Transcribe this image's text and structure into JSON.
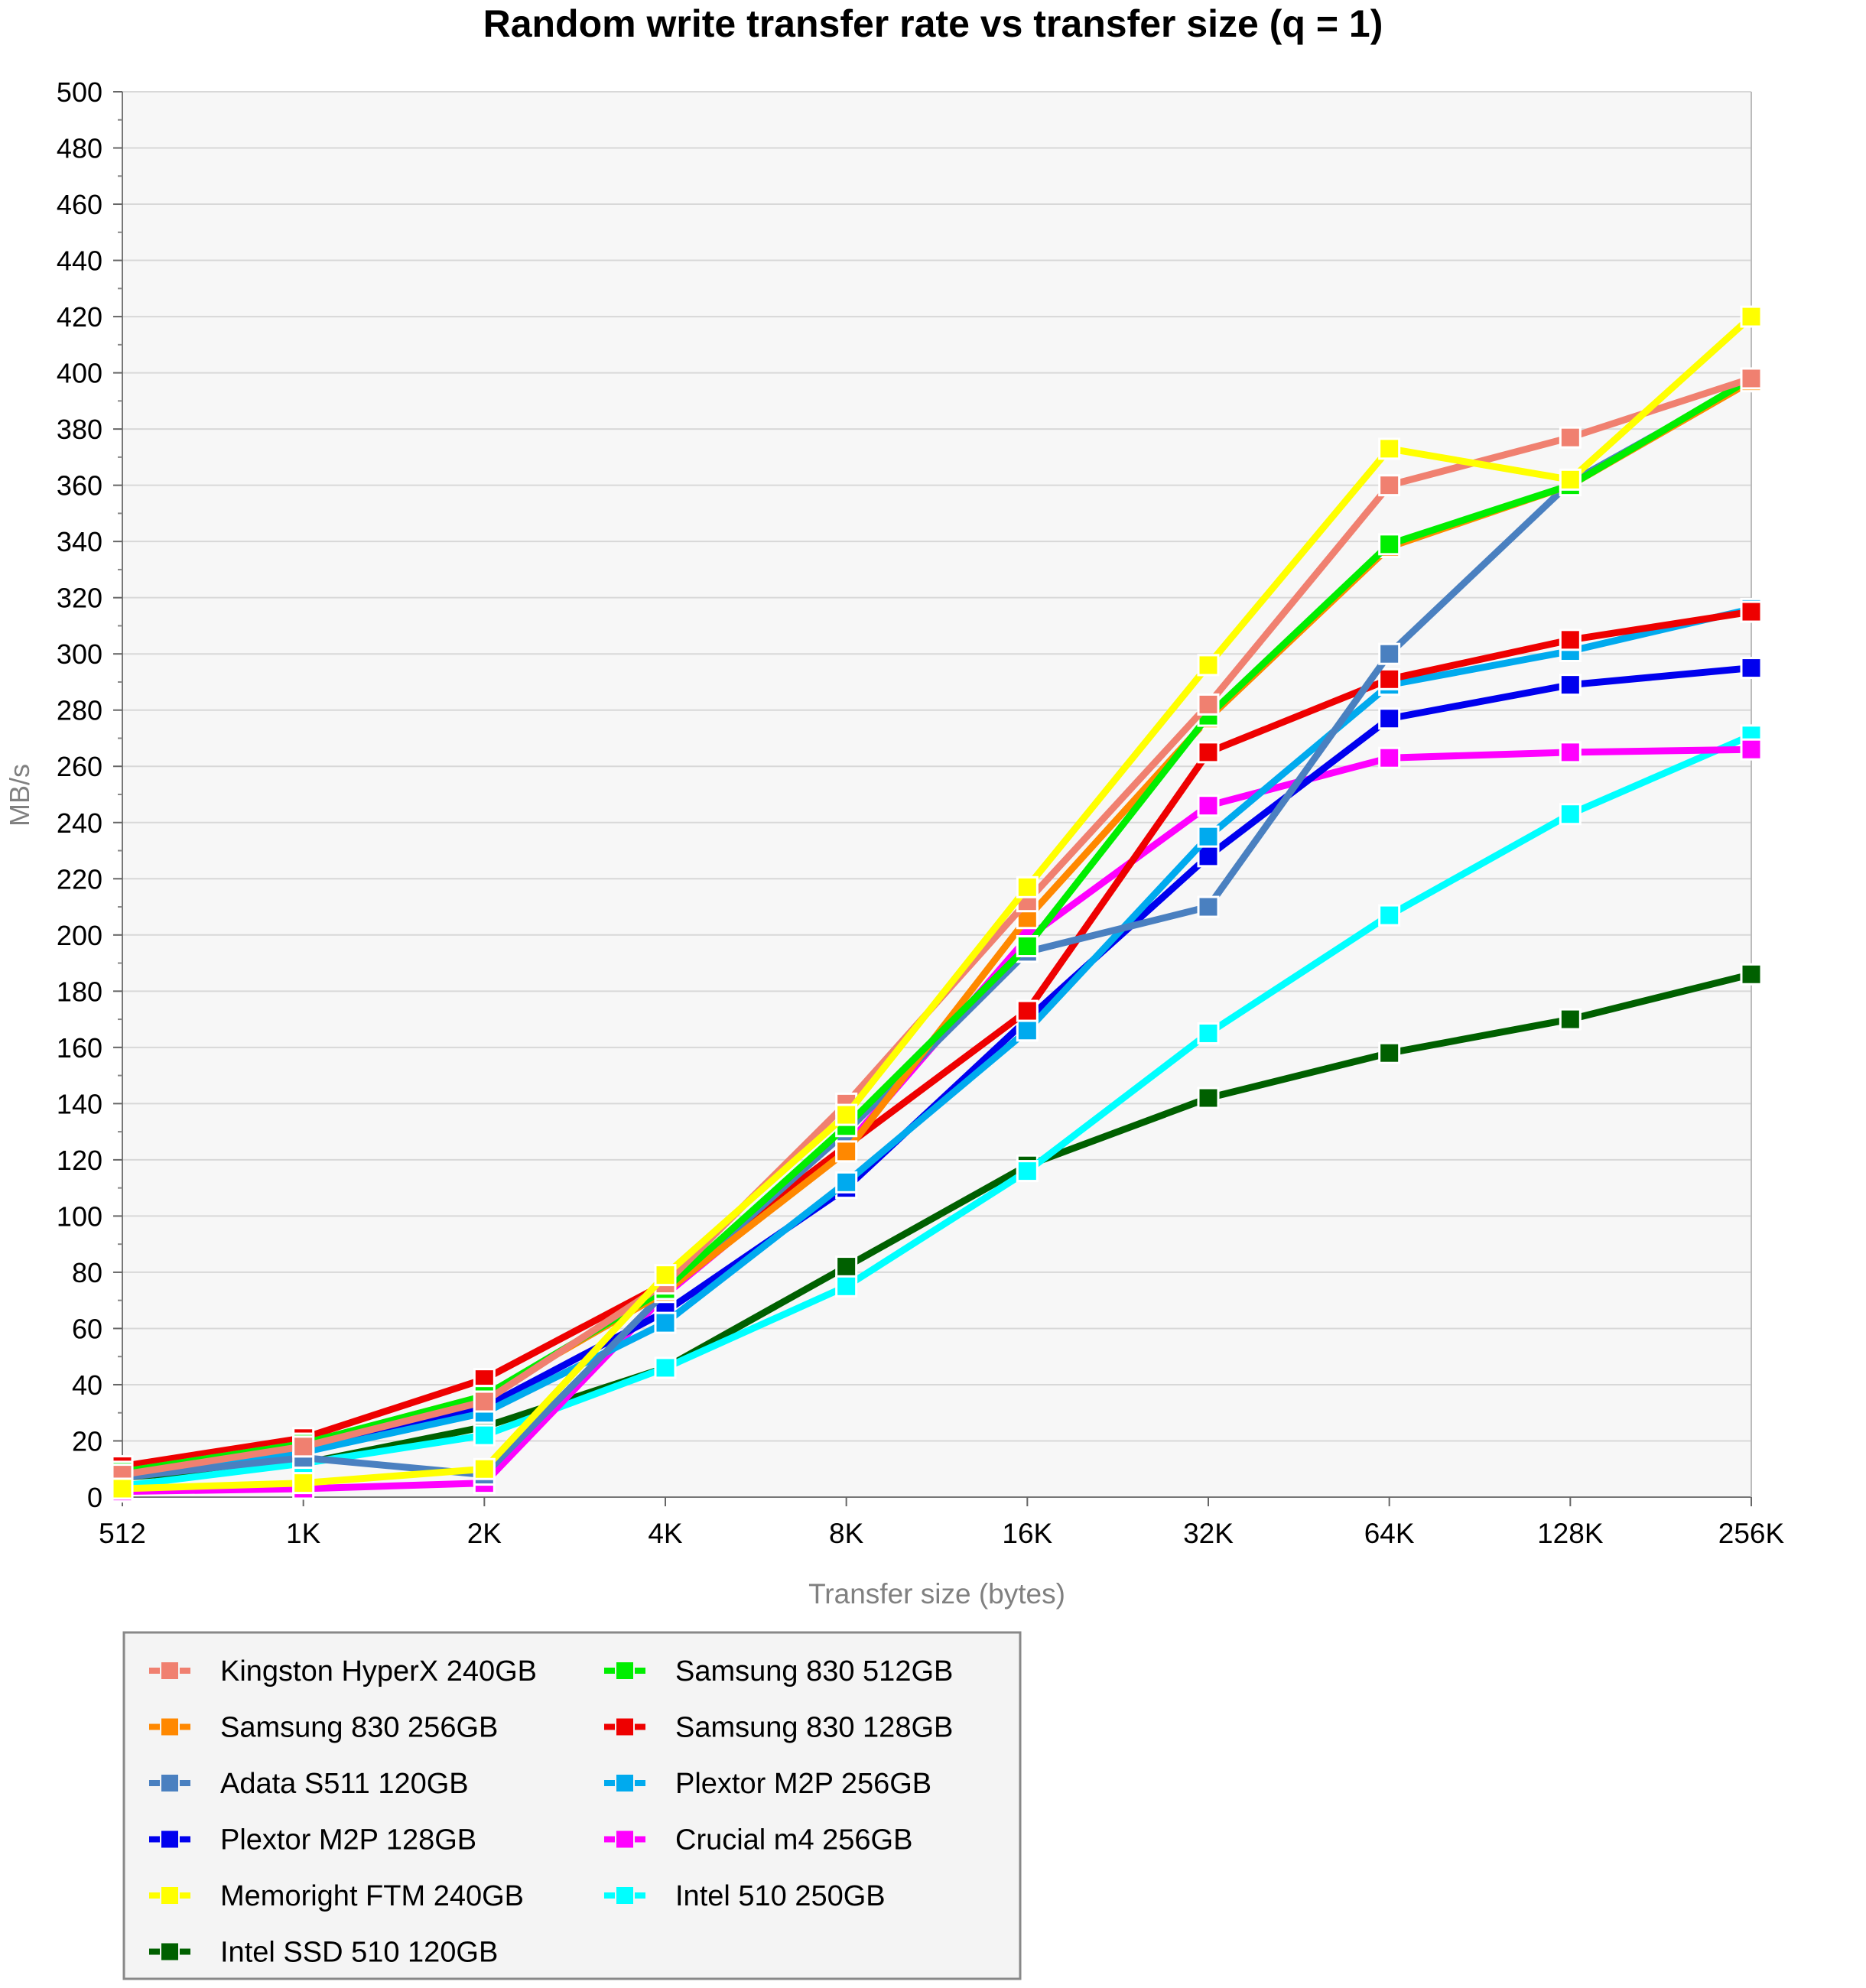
{
  "chart_data": {
    "type": "line",
    "title": "Random write transfer rate vs transfer size (q = 1)",
    "xlabel": "Transfer size (bytes)",
    "ylabel": "MB/s",
    "ylim": [
      0,
      500
    ],
    "y_ticks": [
      "0",
      "20",
      "40",
      "60",
      "80",
      "100",
      "120",
      "140",
      "160",
      "180",
      "200",
      "220",
      "240",
      "260",
      "280",
      "300",
      "320",
      "340",
      "360",
      "380",
      "400",
      "420",
      "440",
      "460",
      "480",
      "500"
    ],
    "categories": [
      "512",
      "1K",
      "2K",
      "4K",
      "8K",
      "16K",
      "32K",
      "64K",
      "128K",
      "256K"
    ],
    "grid": true,
    "legend_position": "bottom-left",
    "series": [
      {
        "name": "Kingston HyperX 240GB",
        "color": "#f08070",
        "values": [
          8,
          18,
          34,
          76,
          140,
          212,
          282,
          360,
          377,
          398
        ]
      },
      {
        "name": "Samsung 830 512GB",
        "color": "#00ee00",
        "values": [
          9,
          19,
          36,
          74,
          132,
          196,
          278,
          339,
          360,
          398
        ]
      },
      {
        "name": "Samsung 830 256GB",
        "color": "#ff8800",
        "values": [
          9,
          19,
          36,
          73,
          123,
          206,
          277,
          338,
          360,
          397
        ]
      },
      {
        "name": "Samsung 830 128GB",
        "color": "#ee0000",
        "values": [
          11,
          21,
          42,
          76,
          125,
          173,
          265,
          291,
          305,
          315
        ]
      },
      {
        "name": "Adata S511 120GB",
        "color": "#4a80c0",
        "values": [
          7,
          14,
          8,
          73,
          130,
          194,
          210,
          300,
          361,
          397
        ]
      },
      {
        "name": "Plextor M2P 256GB",
        "color": "#00aaee",
        "values": [
          8,
          16,
          30,
          62,
          112,
          166,
          235,
          289,
          301,
          316
        ]
      },
      {
        "name": "Plextor M2P 128GB",
        "color": "#0000ee",
        "values": [
          9,
          17,
          32,
          66,
          110,
          170,
          228,
          277,
          289,
          295
        ]
      },
      {
        "name": "Crucial m4 256GB",
        "color": "#ff00ff",
        "values": [
          2,
          3,
          5,
          72,
          125,
          199,
          246,
          263,
          265,
          266
        ]
      },
      {
        "name": "Memoright FTM 240GB",
        "color": "#ffff00",
        "values": [
          3,
          5,
          10,
          79,
          136,
          217,
          296,
          373,
          362,
          420
        ]
      },
      {
        "name": "Intel 510 250GB",
        "color": "#00ffff",
        "values": [
          4,
          12,
          22,
          46,
          75,
          116,
          165,
          207,
          243,
          271
        ]
      },
      {
        "name": "Intel SSD 510 120GB",
        "color": "#006000",
        "values": [
          7,
          12,
          25,
          46,
          82,
          118,
          142,
          158,
          170,
          186
        ]
      }
    ]
  },
  "legend": {
    "left": [
      "Kingston HyperX 240GB",
      "Samsung 830 256GB",
      "Adata S511 120GB",
      "Plextor M2P 128GB",
      "Memoright FTM 240GB",
      "Intel SSD 510 120GB"
    ],
    "right": [
      "Samsung 830 512GB",
      "Samsung 830 128GB",
      "Plextor M2P 256GB",
      "Crucial m4 256GB",
      "Intel 510 250GB"
    ]
  },
  "colors": {
    "plot_background": "#f7f7f7",
    "grid": "#d8d8d8",
    "axis_label": "#808080",
    "legend_background": "#f4f4f4"
  }
}
